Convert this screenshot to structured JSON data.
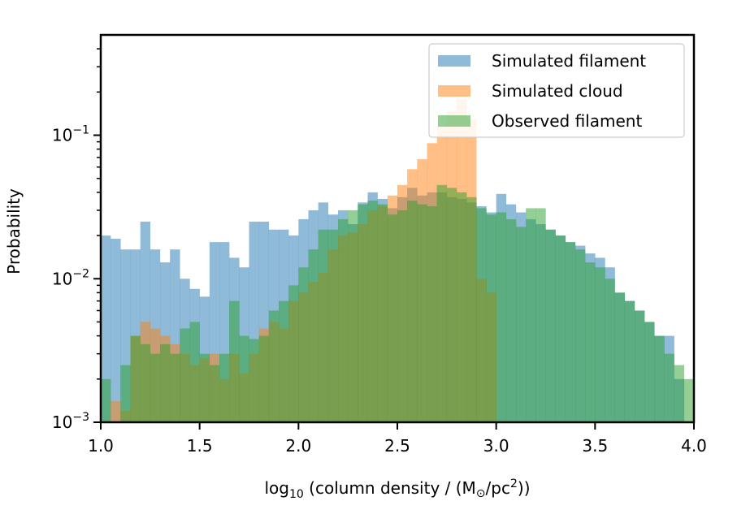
{
  "chart_data": {
    "type": "histogram",
    "xlabel_prefix": "log",
    "xlabel_sub": "10",
    "xlabel_mid": " (column density / (M",
    "xlabel_sym": "⊙",
    "xlabel_mid2": "/pc",
    "xlabel_sup": "2",
    "xlabel_end": "))",
    "ylabel": "Probability",
    "xlim": [
      1.0,
      4.0
    ],
    "ylim": [
      0.001,
      0.5
    ],
    "yscale": "log",
    "x_ticks": [
      "1.0",
      "1.5",
      "2.0",
      "2.5",
      "3.0",
      "3.5",
      "4.0"
    ],
    "y_ticks": [
      {
        "base": "10",
        "exp": "−3",
        "value": 0.001
      },
      {
        "base": "10",
        "exp": "−2",
        "value": 0.01
      },
      {
        "base": "10",
        "exp": "−1",
        "value": 0.1
      }
    ],
    "legend_position": "top-right",
    "bin_start": 1.0,
    "bin_width": 0.05,
    "series": [
      {
        "name": "Simulated filament",
        "color": "#1f77b4",
        "alpha": 0.5,
        "values": [
          0.02,
          0.019,
          0.016,
          0.016,
          0.025,
          0.016,
          0.013,
          0.016,
          0.01,
          0.0085,
          0.0075,
          0.018,
          0.018,
          0.014,
          0.012,
          0.025,
          0.025,
          0.022,
          0.022,
          0.02,
          0.026,
          0.03,
          0.034,
          0.028,
          0.03,
          0.024,
          0.034,
          0.04,
          0.036,
          0.031,
          0.037,
          0.043,
          0.038,
          0.04,
          0.04,
          0.037,
          0.036,
          0.034,
          0.032,
          0.029,
          0.039,
          0.033,
          0.029,
          0.026,
          0.024,
          0.022,
          0.02,
          0.018,
          0.017,
          0.015,
          0.014,
          0.012,
          0.008,
          0.007,
          0.006,
          0.005,
          0.004,
          0.004,
          0.002,
          0.001
        ]
      },
      {
        "name": "Simulated cloud",
        "color": "#ff7f0e",
        "alpha": 0.5,
        "values": [
          0,
          0.0014,
          0.0012,
          0.004,
          0.005,
          0.0045,
          0.004,
          0.0035,
          0.003,
          0.0025,
          0.0028,
          0.003,
          0.002,
          0.003,
          0.0022,
          0.003,
          0.0045,
          0.005,
          0.0045,
          0.007,
          0.008,
          0.0095,
          0.011,
          0.016,
          0.02,
          0.021,
          0.024,
          0.03,
          0.032,
          0.038,
          0.045,
          0.058,
          0.068,
          0.088,
          0.115,
          0.148,
          0.18,
          0.13,
          0.01,
          0.008
        ]
      },
      {
        "name": "Observed filament",
        "color": "#2ca02c",
        "alpha": 0.5,
        "values": [
          0.002,
          0.001,
          0.0025,
          0.004,
          0.0035,
          0.003,
          0.0035,
          0.003,
          0.0045,
          0.005,
          0.003,
          0.0025,
          0.003,
          0.007,
          0.004,
          0.0038,
          0.004,
          0.006,
          0.007,
          0.009,
          0.012,
          0.016,
          0.022,
          0.022,
          0.026,
          0.03,
          0.033,
          0.035,
          0.033,
          0.028,
          0.03,
          0.035,
          0.033,
          0.032,
          0.045,
          0.043,
          0.04,
          0.037,
          0.031,
          0.028,
          0.029,
          0.026,
          0.023,
          0.031,
          0.031,
          0.022,
          0.02,
          0.018,
          0.016,
          0.013,
          0.012,
          0.01,
          0.008,
          0.007,
          0.006,
          0.005,
          0.004,
          0.003,
          0.0025,
          0.002
        ]
      }
    ]
  }
}
